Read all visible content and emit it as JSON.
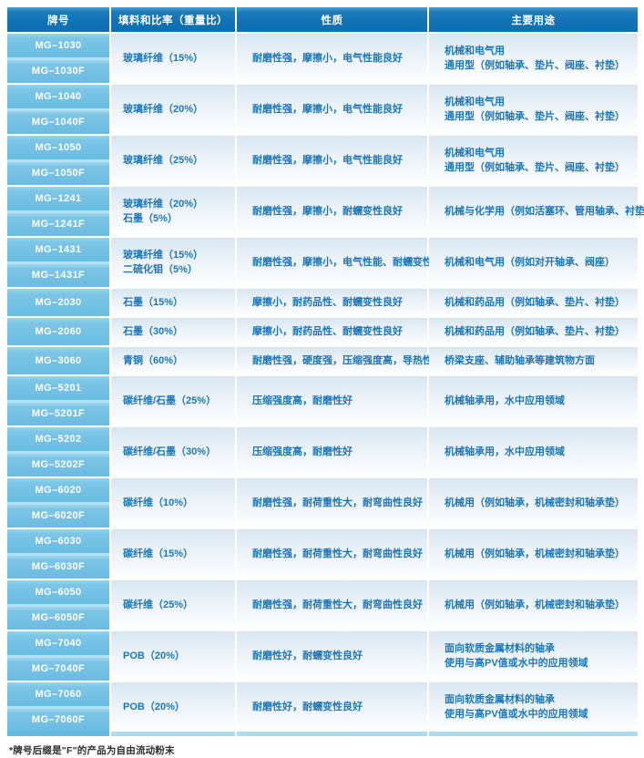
{
  "colors": {
    "header_bg": "#1173b5",
    "grade_cell_bg": "#6fbee2",
    "cell_text_blue": "#1b76b8",
    "row_bg_top": "#d7e6f1",
    "row_bg_bottom": "#ffffff",
    "bottom_border_light": "#addcf1",
    "bottom_border_dark": "#63b9df"
  },
  "table": {
    "headers": [
      "牌号",
      "填料和比率（重量比）",
      "性质",
      "主要用途"
    ],
    "rows": [
      {
        "grades": [
          "MG–1030",
          "MG–1030F"
        ],
        "fillers": [
          "玻璃纤维（15%）"
        ],
        "properties": [
          "耐磨性强，摩擦小，电气性能良好"
        ],
        "uses": [
          "机械和电气用",
          "通用型（例如轴承、垫片、阀座、衬垫）"
        ]
      },
      {
        "grades": [
          "MG–1040",
          "MG–1040F"
        ],
        "fillers": [
          "玻璃纤维（20%）"
        ],
        "properties": [
          "耐磨性强，摩擦小，电气性能良好"
        ],
        "uses": [
          "机械和电气用",
          "通用型（例如轴承、垫片、阀座、衬垫）"
        ]
      },
      {
        "grades": [
          "MG–1050",
          "MG–1050F"
        ],
        "fillers": [
          "玻璃纤维（25%）"
        ],
        "properties": [
          "耐磨性强，摩擦小，电气性能良好"
        ],
        "uses": [
          "机械和电气用",
          "通用型（例如轴承、垫片、阀座、衬垫）"
        ]
      },
      {
        "grades": [
          "MG–1241",
          "MG–1241F"
        ],
        "fillers": [
          "玻璃纤维（20%）",
          "石墨（5%）"
        ],
        "properties": [
          "耐磨性强，摩擦小，耐蠕变性良好"
        ],
        "uses": [
          "机械与化学用（例如活塞环、管用轴承、衬垫）"
        ]
      },
      {
        "grades": [
          "MG–1431",
          "MG–1431F"
        ],
        "fillers": [
          "玻璃纤维（15%）",
          "二硫化钼（5%）"
        ],
        "properties": [
          "耐磨性强，摩擦小，电气性能、耐蠕变性良好"
        ],
        "uses": [
          "机械和电气用（例如对开轴承、阀座）"
        ]
      },
      {
        "grades": [
          "MG–2030"
        ],
        "fillers": [
          "石墨（15%）"
        ],
        "properties": [
          "摩擦小，耐药品性、耐蠕变性良好"
        ],
        "uses": [
          "机械和药品用（例如轴承、垫片、衬垫）"
        ]
      },
      {
        "grades": [
          "MG–2060"
        ],
        "fillers": [
          "石墨（30%）"
        ],
        "properties": [
          "摩擦小，耐药品性、耐蠕变性良好"
        ],
        "uses": [
          "机械和药品用（例如轴承、垫片、衬垫）"
        ]
      },
      {
        "grades": [
          "MG–3060"
        ],
        "fillers": [
          "青铜（60%）"
        ],
        "properties": [
          "耐磨性强，硬度强，压缩强度高，导热性好"
        ],
        "uses": [
          "桥梁支座、辅助轴承等建筑物方面"
        ]
      },
      {
        "grades": [
          "MG–5201",
          "MG–5201F"
        ],
        "fillers": [
          "碳纤维/石墨（25%）"
        ],
        "properties": [
          "压缩强度高，耐磨性好"
        ],
        "uses": [
          "机械轴承用，水中应用领域"
        ]
      },
      {
        "grades": [
          "MG–5202",
          "MG–5202F"
        ],
        "fillers": [
          "碳纤维/石墨（30%）"
        ],
        "properties": [
          "压缩强度高，耐磨性好"
        ],
        "uses": [
          "机械轴承用，水中应用领域"
        ]
      },
      {
        "grades": [
          "MG–6020",
          "MG–6020F"
        ],
        "fillers": [
          "碳纤维（10%）"
        ],
        "properties": [
          "耐磨性强，耐荷重性大，耐弯曲性良好"
        ],
        "uses": [
          "机械用（例如轴承，机械密封和轴承垫）"
        ]
      },
      {
        "grades": [
          "MG–6030",
          "MG–6030F"
        ],
        "fillers": [
          "碳纤维（15%）"
        ],
        "properties": [
          "耐磨性强，耐荷重性大，耐弯曲性良好"
        ],
        "uses": [
          "机械用（例如轴承，机械密封和轴承垫）"
        ]
      },
      {
        "grades": [
          "MG–6050",
          "MG–6050F"
        ],
        "fillers": [
          "碳纤维（25%）"
        ],
        "properties": [
          "耐磨性强，耐荷重性大，耐弯曲性良好"
        ],
        "uses": [
          "机械用（例如轴承，机械密封和轴承垫）"
        ]
      },
      {
        "grades": [
          "MG–7040",
          "MG–7040F"
        ],
        "fillers": [
          "POB（20%）"
        ],
        "properties": [
          "耐磨性好，耐蠕变性良好"
        ],
        "uses": [
          "面向软质金属材料的轴承",
          "使用与高PV值或水中的应用领域"
        ]
      },
      {
        "grades": [
          "MG–7060",
          "MG–7060F"
        ],
        "fillers": [
          "POB（20%）"
        ],
        "properties": [
          "耐磨性好，耐蠕变性良好"
        ],
        "uses": [
          "面向软质金属材料的轴承",
          "使用与高PV值或水中的应用领域"
        ]
      }
    ]
  },
  "footnote": "*牌号后缀是\"F\"的产品为自由流动粉末"
}
